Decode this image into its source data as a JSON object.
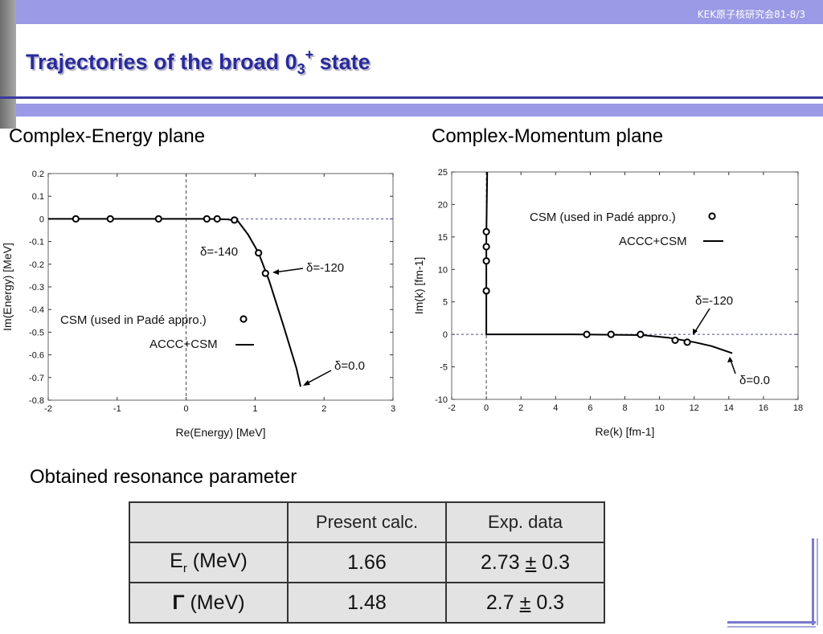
{
  "header": {
    "tag": "KEK原子核研究会81-8/3"
  },
  "title": {
    "main": "Trajectories of the broad 0",
    "sub": "3",
    "sup": "+",
    "tail": " state"
  },
  "panels": {
    "left_heading": "Complex-Energy plane",
    "right_heading": "Complex-Momentum plane"
  },
  "chart_data": [
    {
      "type": "scatter",
      "title": "",
      "xlabel": "Re(Energy) [MeV]",
      "ylabel": "Im(Energy) [MeV]",
      "xlim": [
        -2,
        3
      ],
      "ylim": [
        -0.8,
        0.2
      ],
      "xticks": [
        "-2",
        "-1",
        "0",
        "1",
        "2",
        "3"
      ],
      "yticks": [
        "0.2",
        "0.1",
        "0",
        "-0.1",
        "-0.2",
        "-0.3",
        "-0.4",
        "-0.5",
        "-0.6",
        "-0.7",
        "-0.8"
      ],
      "series": [
        {
          "name": "CSM (used in Padé appro.)",
          "style": "circles",
          "x": [
            -1.6,
            -1.1,
            -0.4,
            0.3,
            0.45,
            0.7,
            1.05,
            1.15
          ],
          "y": [
            0.0,
            0.0,
            0.0,
            0.0,
            0.0,
            -0.005,
            -0.15,
            -0.24
          ]
        },
        {
          "name": "ACCC+CSM",
          "style": "line",
          "x": [
            -2,
            -1,
            0,
            0.3,
            0.6,
            0.75,
            0.9,
            1.05,
            1.2,
            1.4,
            1.6,
            1.66
          ],
          "y": [
            0.0,
            0.0,
            0.0,
            0.0,
            -0.002,
            -0.01,
            -0.07,
            -0.15,
            -0.27,
            -0.46,
            -0.66,
            -0.74
          ]
        }
      ],
      "reference_lines": {
        "vertical_x": 0,
        "horizontal_y": 0
      },
      "annotations": [
        "δ=-140",
        "δ=-120",
        "δ=0.0"
      ],
      "legend_position": "bottom-left"
    },
    {
      "type": "scatter",
      "title": "",
      "xlabel": "Re(k) [fm-1]",
      "ylabel": "Im(k) [fm-1]",
      "xlim": [
        -2,
        18
      ],
      "ylim": [
        -10,
        25
      ],
      "xticks": [
        "-2",
        "0",
        "2",
        "4",
        "6",
        "8",
        "10",
        "12",
        "14",
        "16",
        "18"
      ],
      "yticks": [
        "25",
        "20",
        "15",
        "10",
        "5",
        "0",
        "-5",
        "-10"
      ],
      "series": [
        {
          "name": "CSM (used in Padé appro.)",
          "style": "circles",
          "x": [
            0,
            0,
            0,
            0,
            5.8,
            7.2,
            8.9,
            10.9,
            11.6
          ],
          "y": [
            15.8,
            13.5,
            11.3,
            6.7,
            0.0,
            0.0,
            0.0,
            -0.9,
            -1.2
          ]
        },
        {
          "name": "ACCC+CSM",
          "style": "line",
          "x": [
            0.05,
            0.0,
            0.0,
            0.0,
            0.5,
            5,
            9,
            10.5,
            12,
            13,
            14.2
          ],
          "y": [
            25,
            15,
            5,
            0,
            0,
            0,
            -0.1,
            -0.5,
            -1.2,
            -1.8,
            -2.9
          ]
        }
      ],
      "reference_lines": {
        "vertical_x": 0,
        "horizontal_y": 0
      },
      "annotations": [
        "δ=-120",
        "δ=0.0"
      ],
      "legend_position": "top-right"
    }
  ],
  "parameters": {
    "label": "Obtained resonance parameter",
    "columns": [
      "",
      "Present calc.",
      "Exp. data"
    ],
    "rows": [
      {
        "label_main": "E",
        "label_sub": "r",
        "label_unit": " (MeV)",
        "present": "1.66",
        "exp_value": "2.73",
        "pm": "±",
        "exp_err": "0.3"
      },
      {
        "label_main": "Γ",
        "label_sub": "",
        "label_unit": " (MeV)",
        "present": "1.48",
        "exp_value": "2.7",
        "pm": "±",
        "exp_err": "0.3"
      }
    ]
  }
}
